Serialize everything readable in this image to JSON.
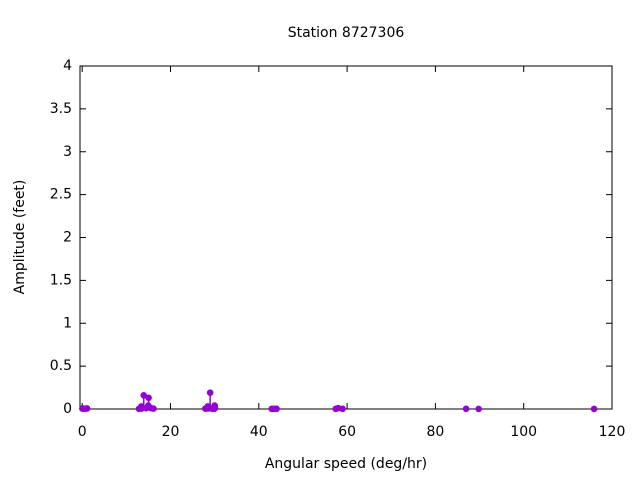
{
  "chart_data": {
    "type": "stem",
    "title": "Station 8727306",
    "x_label": "Angular speed (deg/hr)",
    "y_label": "Amplitude (feet)",
    "color": "#9400d3",
    "x": [
      0.0411,
      0.0821,
      0.5444,
      1.098,
      12.8543,
      13.3987,
      13.4715,
      13.943,
      14.4967,
      14.9589,
      15.0411,
      15.5854,
      16.1391,
      27.8954,
      27.9682,
      28.4397,
      28.5126,
      28.9841,
      29.4556,
      29.5285,
      29.9589,
      30.0,
      30.0821,
      42.9271,
      43.4762,
      44.0252,
      57.4238,
      57.9682,
      58.9841,
      86.9523,
      89.8,
      115.9364
    ],
    "values": [
      0.005,
      0.005,
      0.004,
      0.006,
      0.002,
      0.03,
      0.005,
      0.16,
      0.01,
      0.04,
      0.13,
      0.01,
      0.005,
      0.005,
      0.005,
      0.03,
      0.006,
      0.19,
      0.003,
      0.01,
      0.004,
      0.04,
      0.012,
      0.002,
      0.003,
      0.002,
      0.002,
      0.01,
      0.002,
      0.002,
      0.001,
      0.001
    ],
    "xlim": [
      -0.5,
      120
    ],
    "ylim": [
      0,
      4
    ],
    "xticks": [
      0,
      20,
      40,
      60,
      80,
      100,
      120
    ],
    "yticks": [
      0,
      0.5,
      1,
      1.5,
      2,
      2.5,
      3,
      3.5,
      4
    ]
  }
}
